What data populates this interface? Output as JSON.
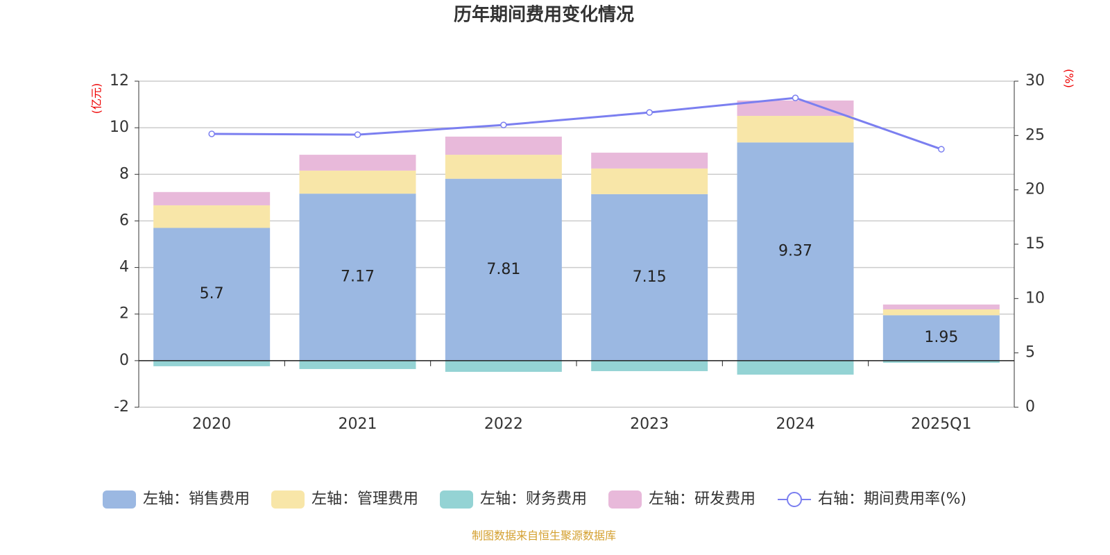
{
  "chart_data": {
    "type": "bar",
    "title": "历年期间费用变化情况",
    "y_label": "(亿元)",
    "y2_label": "(%)",
    "source": "制图数据来自恒生聚源数据库",
    "categories": [
      "2020",
      "2021",
      "2022",
      "2023",
      "2024",
      "2025Q1"
    ],
    "series": [
      {
        "name": "左轴：销售费用",
        "color": "#9bb8e2",
        "values": [
          5.7,
          7.17,
          7.81,
          7.15,
          9.37,
          1.95
        ],
        "show_labels": true
      },
      {
        "name": "左轴：管理费用",
        "color": "#f8e6a8",
        "values": [
          0.97,
          0.99,
          1.03,
          1.1,
          1.14,
          0.25
        ]
      },
      {
        "name": "左轴：财务费用",
        "color": "#94d3d4",
        "values": [
          -0.24,
          -0.36,
          -0.48,
          -0.45,
          -0.6,
          -0.09
        ]
      },
      {
        "name": "左轴：研发费用",
        "color": "#e8b9da",
        "values": [
          0.57,
          0.68,
          0.78,
          0.68,
          0.66,
          0.21
        ]
      },
      {
        "name": "右轴：期间费用率(%)",
        "color": "#7b7ff0",
        "type": "line",
        "axis": "y2",
        "values": [
          25.15,
          25.08,
          25.97,
          27.12,
          28.46,
          23.74
        ]
      }
    ],
    "ylim": [
      -2,
      12
    ],
    "yticks": [
      -2,
      0,
      2,
      4,
      6,
      8,
      10,
      12
    ],
    "y2lim": [
      0,
      30
    ],
    "y2ticks": [
      0,
      5,
      10,
      15,
      20,
      25,
      30
    ],
    "grid": true
  }
}
